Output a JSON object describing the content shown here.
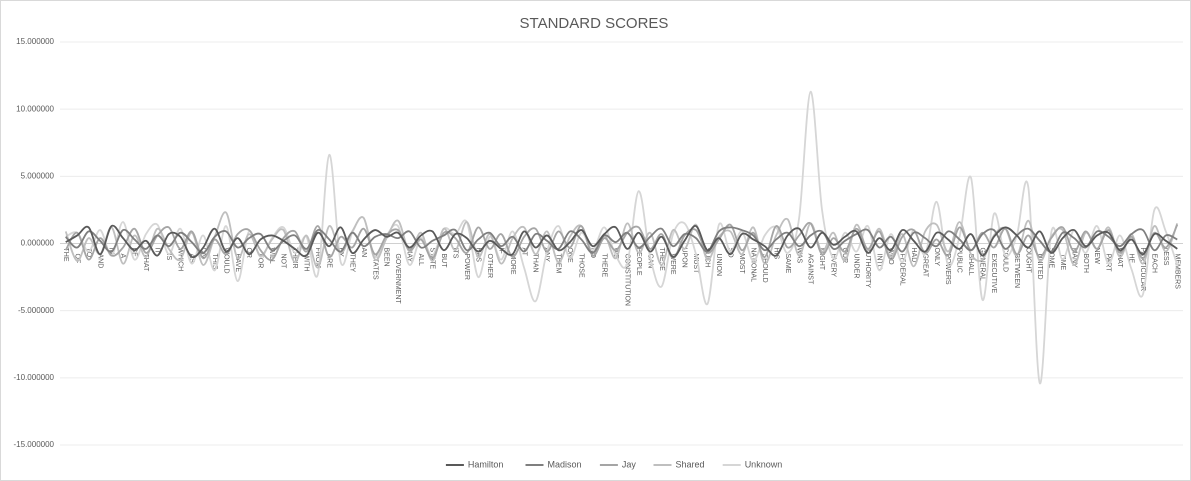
{
  "chart_data": {
    "type": "line",
    "title": "STANDARD SCORES",
    "categories": [
      "THE",
      "OF",
      "TO",
      "AND",
      "IN",
      "A",
      "BE",
      "THAT",
      "IT",
      "IS",
      "WHICH",
      "AS",
      "ON",
      "THIS",
      "WOULD",
      "HAVE",
      "OR",
      "FOR",
      "WILL",
      "NOT",
      "THEIR",
      "WITH",
      "FROM",
      "ARE",
      "BY",
      "THEY",
      "AN",
      "STATES",
      "BEEN",
      "GOVERNMENT",
      "MAY",
      "ALL",
      "STATE",
      "BUT",
      "ITS",
      "POWER",
      "HAS",
      "OTHER",
      "IF",
      "MORE",
      "AT",
      "THAN",
      "ANY",
      "THEM",
      "ONE",
      "THOSE",
      "NO",
      "THERE",
      "WE",
      "CONSTITUTION",
      "PEOPLE",
      "CAN",
      "THESE",
      "WERE",
      "UPON",
      "MUST",
      "SUCH",
      "UNION",
      "SO",
      "MOST",
      "NATIONAL",
      "SHOULD",
      "HIS",
      "SAME",
      "WAS",
      "AGAINST",
      "MIGHT",
      "EVERY",
      "OUR",
      "UNDER",
      "AUTHORITY",
      "INTO",
      "WHO",
      "FEDERAL",
      "HAD",
      "GREAT",
      "ONLY",
      "POWERS",
      "PUBLIC",
      "SHALL",
      "GENERAL",
      "EXECUTIVE",
      "COULD",
      "BETWEEN",
      "OUGHT",
      "UNITED",
      "SOME",
      "TIME",
      "MANY",
      "BOTH",
      "NEW",
      "PART",
      "WHAT",
      "HE",
      "PARTICULAR",
      "EACH",
      "LESS",
      "MEMBERS"
    ],
    "series": [
      {
        "name": "Hamilton",
        "color": "#595959",
        "values": [
          0.1,
          0.6,
          1.2,
          -0.8,
          1.3,
          0.4,
          -0.5,
          0.2,
          -0.9,
          0.7,
          0.5,
          -1.0,
          -0.3,
          1.1,
          -0.6,
          0.4,
          -0.8,
          0.3,
          0.6,
          0.2,
          -0.4,
          -0.9,
          0.8,
          -0.2,
          1.2,
          -0.7,
          0.3,
          1.0,
          0.5,
          0.8,
          -0.3,
          0.6,
          0.9,
          -0.5,
          0.7,
          0.4,
          -0.6,
          0.2,
          -0.4,
          -0.8,
          0.9,
          -0.3,
          0.6,
          -0.5,
          0.1,
          1.0,
          -0.2,
          0.7,
          1.2,
          -0.4,
          0.8,
          -0.6,
          0.5,
          -1.0,
          0.2,
          1.3,
          -0.5,
          0.4,
          -0.8,
          0.7,
          0.3,
          -0.2,
          -0.9,
          0.6,
          1.1,
          -0.3,
          0.8,
          -0.1,
          0.5,
          0.9,
          -0.7,
          0.4,
          -0.5,
          1.0,
          0.2,
          -0.6,
          0.8,
          0.3,
          -0.4,
          0.7,
          -0.9,
          0.5,
          1.2,
          0.6,
          -0.3,
          0.9,
          -0.7,
          0.4,
          1.0,
          -0.2,
          0.6,
          0.8,
          -0.5,
          0.3,
          -0.8,
          0.7,
          0.2,
          -0.4
        ]
      },
      {
        "name": "Madison",
        "color": "#7f7f7f",
        "values": [
          0.5,
          -0.3,
          0.9,
          0.2,
          -0.6,
          1.0,
          0.3,
          -0.4,
          0.6,
          -0.2,
          0.8,
          0.1,
          -0.7,
          0.5,
          0.9,
          -0.3,
          0.4,
          0.7,
          -0.5,
          0.2,
          0.6,
          -0.4,
          1.0,
          0.3,
          -0.6,
          0.8,
          -0.2,
          0.5,
          0.7,
          0.4,
          0.9,
          -0.3,
          0.2,
          0.6,
          1.0,
          -0.5,
          0.3,
          0.8,
          -0.2,
          0.5,
          -0.6,
          0.7,
          0.2,
          -0.4,
          0.9,
          0.3,
          -0.7,
          0.6,
          0.1,
          0.8,
          -0.3,
          0.5,
          1.1,
          -0.2,
          0.7,
          0.4,
          -0.6,
          0.9,
          1.2,
          1.0,
          0.6,
          -0.5,
          0.3,
          0.8,
          -0.2,
          0.6,
          0.9,
          -0.4,
          0.2,
          0.7,
          1.0,
          -0.3,
          0.5,
          -0.6,
          0.8,
          0.4,
          -0.2,
          0.9,
          0.3,
          -0.5,
          0.7,
          1.0,
          -0.4,
          0.6,
          1.1,
          0.2,
          -0.6,
          0.8,
          0.4,
          -0.3,
          0.9,
          0.5,
          -0.2,
          0.7,
          1.0,
          -0.5,
          0.6,
          0.3
        ]
      },
      {
        "name": "Jay",
        "color": "#a5a5a5",
        "values": [
          -0.5,
          0.8,
          -1.2,
          0.4,
          -0.9,
          -0.3,
          1.1,
          -0.7,
          0.6,
          1.2,
          -0.4,
          0.9,
          -1.1,
          0.3,
          -0.8,
          0.7,
          1.0,
          -0.5,
          -1.2,
          0.4,
          0.9,
          -0.6,
          1.3,
          -1.0,
          0.5,
          -0.3,
          1.1,
          -0.8,
          0.6,
          1.0,
          -0.5,
          0.3,
          -1.1,
          0.8,
          0.4,
          -0.7,
          1.2,
          -0.4,
          0.7,
          -1.0,
          0.5,
          1.1,
          -0.6,
          0.9,
          -0.3,
          1.3,
          -0.9,
          0.4,
          -0.5,
          0.8,
          1.2,
          -0.4,
          0.7,
          -1.1,
          0.6,
          1.0,
          -0.7,
          0.3,
          1.4,
          -0.5,
          0.8,
          -1.0,
          1.3,
          -0.3,
          0.6,
          1.5,
          -0.8,
          0.4,
          -0.6,
          1.1,
          -0.4,
          0.9,
          -1.2,
          0.5,
          1.0,
          -0.7,
          0.3,
          -0.9,
          1.2,
          -0.5,
          0.8,
          -0.3,
          1.1,
          -0.8,
          0.6,
          -1.0,
          0.4,
          1.2,
          -0.6,
          0.9,
          -0.4,
          1.0,
          -0.7,
          0.5,
          -1.1,
          0.8,
          -0.3,
          1.4
        ]
      },
      {
        "name": "Shared",
        "color": "#bfbfbf",
        "values": [
          0.9,
          -1.3,
          0.4,
          -0.8,
          1.2,
          -1.5,
          0.6,
          -1.0,
          1.1,
          -0.4,
          -1.2,
          0.8,
          -1.6,
          0.5,
          2.3,
          -1.1,
          0.7,
          -0.9,
          0.3,
          1.0,
          -1.4,
          0.6,
          -1.8,
          1.3,
          -0.7,
          0.9,
          1.9,
          -1.2,
          0.4,
          1.7,
          -0.6,
          0.8,
          -1.3,
          1.1,
          -0.5,
          1.6,
          -1.0,
          0.7,
          -1.5,
          0.4,
          1.2,
          -0.8,
          0.9,
          -1.4,
          0.5,
          1.3,
          -0.9,
          0.6,
          -1.1,
          1.5,
          -0.7,
          0.8,
          -1.6,
          1.0,
          -0.4,
          1.4,
          -1.2,
          0.5,
          0.9,
          -0.8,
          1.2,
          -1.5,
          0.6,
          1.8,
          -0.9,
          1.5,
          -0.6,
          0.8,
          -1.3,
          1.4,
          -0.5,
          1.1,
          -1.0,
          0.7,
          -1.7,
          0.9,
          1.4,
          -0.6,
          1.6,
          -0.8,
          -1.2,
          0.6,
          1.1,
          -0.9,
          1.7,
          -1.3,
          0.5,
          1.0,
          -1.6,
          0.8,
          -0.4,
          1.2,
          -1.0,
          0.7,
          -1.5,
          1.3,
          -0.6,
          1.5
        ]
      },
      {
        "name": "Unknown",
        "color": "#d6d6d6",
        "values": [
          0.5,
          0.8,
          -0.6,
          1.0,
          -0.9,
          1.6,
          -1.2,
          0.7,
          1.4,
          -0.8,
          1.1,
          -1.5,
          0.6,
          -2.0,
          1.3,
          -2.8,
          0.9,
          -1.0,
          0.4,
          1.2,
          -0.7,
          0.5,
          -2.3,
          6.6,
          -1.4,
          0.8,
          1.9,
          -1.0,
          0.6,
          1.3,
          -1.6,
          0.4,
          -0.9,
          1.1,
          0.7,
          1.6,
          -2.5,
          0.5,
          -1.2,
          0.9,
          -1.8,
          -4.3,
          -0.6,
          1.3,
          -1.1,
          0.8,
          -0.5,
          1.2,
          -0.9,
          -1.5,
          3.9,
          -1.0,
          -3.2,
          0.7,
          1.5,
          -0.8,
          -4.5,
          1.4,
          -0.6,
          0.9,
          -1.3,
          0.6,
          1.2,
          -0.7,
          1.9,
          11.3,
          2.5,
          -1.1,
          0.8,
          -0.6,
          1.3,
          -2.0,
          0.7,
          -1.4,
          1.0,
          -0.8,
          3.1,
          -1.6,
          0.5,
          4.9,
          -4.2,
          2.2,
          -0.9,
          0.6,
          4.2,
          -10.4,
          0.8,
          -1.2,
          1.0,
          -0.7,
          1.3,
          -1.5,
          0.6,
          -1.9,
          -3.8,
          2.5,
          0.9,
          -1.6
        ]
      }
    ],
    "ylim": [
      -15,
      15
    ],
    "yticks": [
      {
        "value": -15,
        "label": "-15.000000"
      },
      {
        "value": -10,
        "label": "-10.000000"
      },
      {
        "value": -5,
        "label": "-5.000000"
      },
      {
        "value": 0,
        "label": "0.000000"
      },
      {
        "value": 5,
        "label": "5.000000"
      },
      {
        "value": 10,
        "label": "10.000000"
      },
      {
        "value": 15,
        "label": "15.000000"
      }
    ],
    "grid": true,
    "smooth": true,
    "legend": "bottom"
  }
}
